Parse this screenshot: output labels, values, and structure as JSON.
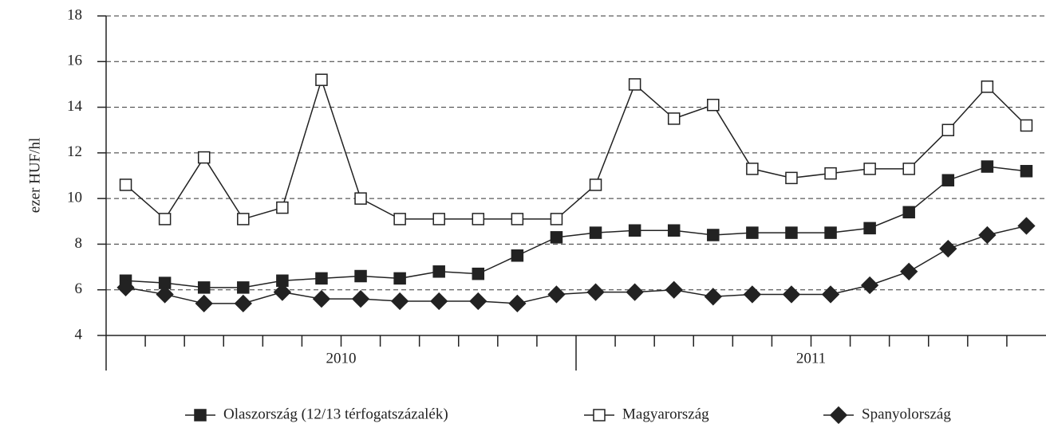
{
  "chart_data": {
    "type": "line",
    "y_label": "ezer HUF/hl",
    "categories": [
      null,
      null,
      null,
      null,
      null,
      null,
      null,
      null,
      null,
      null,
      null,
      null,
      null,
      null,
      null,
      null,
      null,
      null,
      null,
      null,
      null,
      null,
      null,
      null
    ],
    "x_groups": [
      "2010",
      "2011"
    ],
    "ylim": [
      4,
      18
    ],
    "yticks": [
      4,
      6,
      8,
      10,
      12,
      14,
      16,
      18
    ],
    "grid": true,
    "series": [
      {
        "name": "Olaszország (12/13 térfogatszázalék)",
        "color": "#222222",
        "marker": "square",
        "marker_fill": "#222222",
        "values": [
          6.4,
          6.3,
          6.1,
          6.1,
          6.4,
          6.5,
          6.6,
          6.5,
          6.8,
          6.7,
          7.5,
          8.3,
          8.5,
          8.6,
          8.6,
          8.4,
          8.5,
          8.5,
          8.5,
          8.7,
          9.4,
          10.8,
          11.4,
          11.2
        ]
      },
      {
        "name": "Magyarország",
        "color": "#222222",
        "marker": "square",
        "marker_fill": "#ffffff",
        "values": [
          10.6,
          9.1,
          11.8,
          9.1,
          9.6,
          15.2,
          10.0,
          9.1,
          9.1,
          9.1,
          9.1,
          9.1,
          10.6,
          15.0,
          13.5,
          14.1,
          11.3,
          10.9,
          11.1,
          11.3,
          11.3,
          13.0,
          14.9,
          13.2
        ]
      },
      {
        "name": "Spanyolország",
        "color": "#222222",
        "marker": "diamond",
        "marker_fill": "#222222",
        "values": [
          6.1,
          5.8,
          5.4,
          5.4,
          5.9,
          5.6,
          5.6,
          5.5,
          5.5,
          5.5,
          5.4,
          5.8,
          5.9,
          5.9,
          6.0,
          5.7,
          5.8,
          5.8,
          5.8,
          6.2,
          6.8,
          7.8,
          8.4,
          8.8
        ]
      }
    ]
  }
}
